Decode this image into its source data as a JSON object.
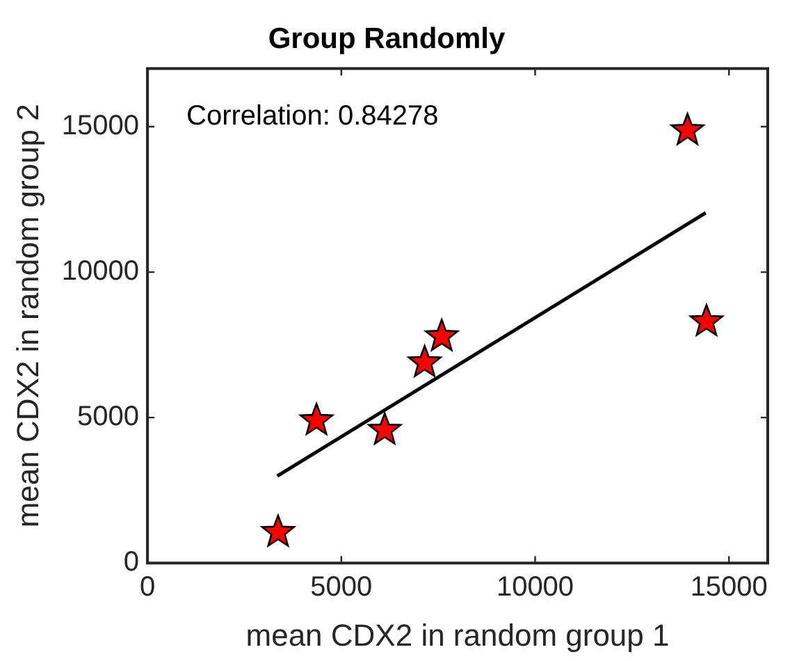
{
  "chart_data": {
    "type": "scatter",
    "title": "Group Randomly",
    "xlabel": "mean CDX2 in random group 1",
    "ylabel": "mean CDX2 in random group 2",
    "annotations": [
      "Correlation: 0.84278"
    ],
    "marker": "star",
    "grid": false,
    "legend": false,
    "xlim": [
      0,
      16000
    ],
    "ylim": [
      0,
      17000
    ],
    "xticks": [
      0,
      5000,
      10000,
      15000
    ],
    "yticks": [
      0,
      5000,
      10000,
      15000
    ],
    "series": [
      {
        "color": "#ff0000",
        "x": [
          3370,
          4360,
          6120,
          7150,
          7590,
          13930,
          14420
        ],
        "values": [
          1060,
          4900,
          4570,
          6890,
          7790,
          14870,
          8300
        ]
      },
      {
        "type": "line",
        "color": "#000000",
        "marker": "none",
        "x": [
          3350,
          14400
        ],
        "values": [
          2990,
          12040
        ]
      }
    ]
  }
}
